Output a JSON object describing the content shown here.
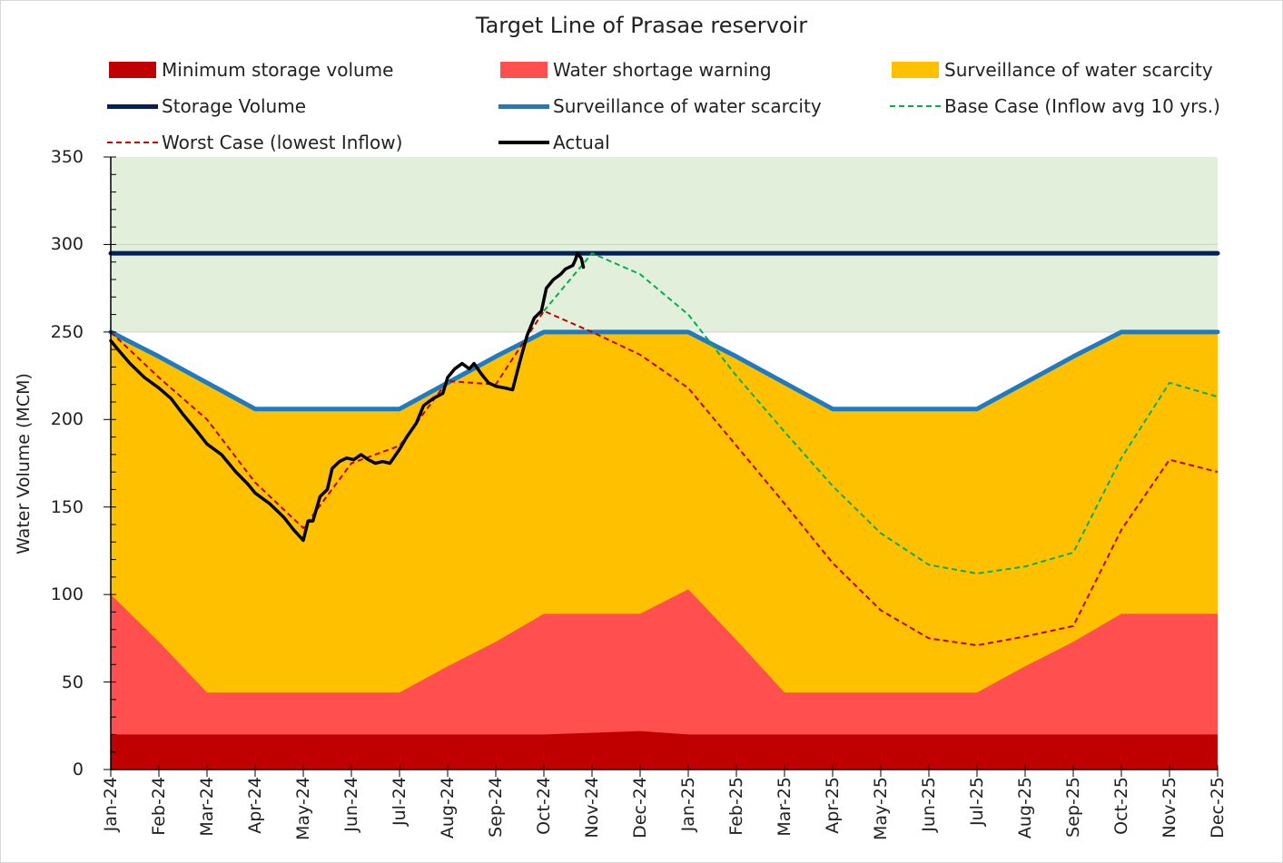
{
  "chart_data": {
    "type": "area",
    "title": "Target Line of Prasae reservoir",
    "xlabel": "",
    "ylabel": "Water Volume (MCM)",
    "ylim": [
      0,
      350
    ],
    "yticks": [
      0,
      50,
      100,
      150,
      200,
      250,
      300,
      350
    ],
    "categories": [
      "Jan-24",
      "Feb-24",
      "Mar-24",
      "Apr-24",
      "May-24",
      "Jun-24",
      "Jul-24",
      "Aug-24",
      "Sep-24",
      "Oct-24",
      "Nov-24",
      "Dec-24",
      "Jan-25",
      "Feb-25",
      "Mar-25",
      "Apr-25",
      "May-25",
      "Jun-25",
      "Jul-25",
      "Aug-25",
      "Sep-25",
      "Oct-25",
      "Nov-25",
      "Dec-25"
    ],
    "legend_position": "top",
    "grid": false,
    "background_band": {
      "from": 250,
      "to": 350,
      "color": "#e2efda"
    },
    "series": [
      {
        "name": "Minimum storage volume",
        "style": "area",
        "color": "#c00000",
        "values": [
          20,
          20,
          20,
          20,
          20,
          20,
          20,
          20,
          20,
          20,
          21,
          22,
          20,
          20,
          20,
          20,
          20,
          20,
          20,
          20,
          20,
          20,
          20,
          20
        ]
      },
      {
        "name": "Water shortage warning",
        "style": "area",
        "color": "#ff4f4f",
        "values": [
          100,
          73,
          44,
          44,
          44,
          44,
          44,
          59,
          73,
          89,
          89,
          89,
          103,
          74,
          44,
          44,
          44,
          44,
          44,
          59,
          73,
          89,
          89,
          89
        ]
      },
      {
        "name": "Surveillance of water scarcity",
        "style": "area",
        "color": "#ffc000",
        "values": [
          250,
          236,
          221,
          206,
          206,
          206,
          206,
          221,
          236,
          250,
          250,
          250,
          250,
          236,
          221,
          206,
          206,
          206,
          206,
          221,
          236,
          250,
          250,
          250
        ]
      },
      {
        "name": "Storage Volume",
        "style": "line",
        "color": "#002060",
        "width": 5,
        "values": [
          295,
          295,
          295,
          295,
          295,
          295,
          295,
          295,
          295,
          295,
          295,
          295,
          295,
          295,
          295,
          295,
          295,
          295,
          295,
          295,
          295,
          295,
          295,
          295
        ]
      },
      {
        "name": "Surveillance of water scarcity",
        "style": "line",
        "color": "#1f7ac4",
        "width": 5,
        "values": [
          250,
          236,
          221,
          206,
          206,
          206,
          206,
          221,
          236,
          250,
          250,
          250,
          250,
          236,
          221,
          206,
          206,
          206,
          206,
          221,
          236,
          250,
          250,
          250
        ]
      },
      {
        "name": "Base Case (Inflow avg 10 yrs.)",
        "style": "dashed",
        "color": "#00b050",
        "width": 2,
        "values": [
          null,
          null,
          null,
          null,
          null,
          null,
          null,
          null,
          null,
          262,
          295,
          283,
          260,
          225,
          193,
          162,
          135,
          117,
          112,
          116,
          124,
          178,
          221,
          213
        ]
      },
      {
        "name": "Worst Case (lowest Inflow)",
        "style": "dashed",
        "color": "#c00000",
        "width": 2,
        "values": [
          250,
          224,
          200,
          164,
          138,
          175,
          185,
          222,
          220,
          262,
          250,
          237,
          218,
          185,
          152,
          118,
          91,
          75,
          71,
          76,
          82,
          137,
          177,
          170
        ]
      },
      {
        "name": "Actual",
        "style": "line",
        "color": "#000000",
        "width": 3.5,
        "points": [
          [
            0,
            245
          ],
          [
            0.15,
            240
          ],
          [
            0.4,
            232
          ],
          [
            0.7,
            224
          ],
          [
            1,
            218
          ],
          [
            1.25,
            212
          ],
          [
            1.5,
            203
          ],
          [
            1.8,
            193
          ],
          [
            2,
            186
          ],
          [
            2.3,
            180
          ],
          [
            2.6,
            170
          ],
          [
            2.85,
            163
          ],
          [
            3,
            158
          ],
          [
            3.3,
            152
          ],
          [
            3.6,
            144
          ],
          [
            3.8,
            137
          ],
          [
            4,
            131
          ],
          [
            4.1,
            142
          ],
          [
            4.2,
            142
          ],
          [
            4.35,
            156
          ],
          [
            4.5,
            160
          ],
          [
            4.6,
            172
          ],
          [
            4.75,
            176
          ],
          [
            4.9,
            178
          ],
          [
            5.05,
            177
          ],
          [
            5.2,
            180
          ],
          [
            5.35,
            177
          ],
          [
            5.5,
            175
          ],
          [
            5.65,
            176
          ],
          [
            5.8,
            175
          ],
          [
            6,
            183
          ],
          [
            6.15,
            190
          ],
          [
            6.35,
            198
          ],
          [
            6.5,
            208
          ],
          [
            6.7,
            212
          ],
          [
            6.9,
            215
          ],
          [
            7,
            224
          ],
          [
            7.15,
            229
          ],
          [
            7.3,
            232
          ],
          [
            7.45,
            229
          ],
          [
            7.55,
            232
          ],
          [
            7.7,
            226
          ],
          [
            7.85,
            221
          ],
          [
            8,
            219
          ],
          [
            8.2,
            218
          ],
          [
            8.35,
            217
          ],
          [
            8.5,
            233
          ],
          [
            8.65,
            248
          ],
          [
            8.8,
            258
          ],
          [
            8.95,
            262
          ],
          [
            9.05,
            275
          ],
          [
            9.2,
            280
          ],
          [
            9.35,
            283
          ],
          [
            9.45,
            286
          ],
          [
            9.6,
            288
          ],
          [
            9.65,
            291
          ],
          [
            9.7,
            295
          ],
          [
            9.78,
            292
          ],
          [
            9.82,
            287
          ]
        ]
      }
    ]
  },
  "legend": [
    {
      "label": "Minimum storage volume",
      "kind": "box",
      "color": "#c00000"
    },
    {
      "label": "Water shortage warning",
      "kind": "box",
      "color": "#ff4f4f"
    },
    {
      "label": "Surveillance of water scarcity",
      "kind": "box",
      "color": "#ffc000"
    },
    {
      "label": "Storage Volume",
      "kind": "line",
      "color": "#002060"
    },
    {
      "label": "Surveillance of water scarcity",
      "kind": "line",
      "color": "#1f7ac4"
    },
    {
      "label": "Base Case (Inflow avg 10 yrs.)",
      "kind": "dash",
      "color": "#00b050"
    },
    {
      "label": "Worst Case (lowest Inflow)",
      "kind": "dash",
      "color": "#c00000"
    },
    {
      "label": "Actual",
      "kind": "line",
      "color": "#000000"
    }
  ]
}
